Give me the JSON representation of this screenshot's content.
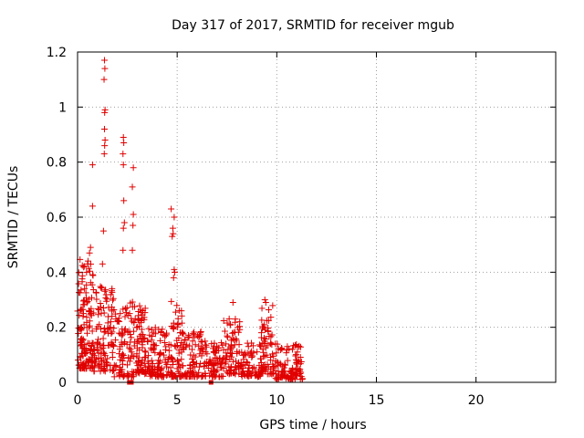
{
  "chart_data": {
    "type": "scatter",
    "title": "Day 317 of 2017, SRMTID for receiver mgub",
    "xlabel": "GPS time / hours",
    "ylabel": "SRMTID / TECUs",
    "xlim": [
      0,
      24
    ],
    "ylim": [
      0,
      1.2
    ],
    "xticks": [
      0,
      5,
      10,
      15,
      20
    ],
    "xtick_labels": [
      "0",
      "5",
      "10",
      "15",
      "20"
    ],
    "yticks": [
      0,
      0.2,
      0.4,
      0.6,
      0.8,
      1.0,
      1.2
    ],
    "ytick_labels": [
      "0",
      "0.2",
      "0.4",
      "0.6",
      "0.8",
      "1",
      "1.2"
    ],
    "grid": true,
    "marker": "+",
    "color": "#e00000",
    "notable_points": [
      {
        "x": 1.35,
        "y": 1.17
      },
      {
        "x": 1.37,
        "y": 1.14
      },
      {
        "x": 1.33,
        "y": 1.1
      },
      {
        "x": 1.38,
        "y": 0.99
      },
      {
        "x": 1.36,
        "y": 0.98
      },
      {
        "x": 1.35,
        "y": 0.92
      },
      {
        "x": 1.38,
        "y": 0.88
      },
      {
        "x": 1.36,
        "y": 0.86
      },
      {
        "x": 1.34,
        "y": 0.83
      },
      {
        "x": 0.75,
        "y": 0.79
      },
      {
        "x": 0.75,
        "y": 0.64
      },
      {
        "x": 2.3,
        "y": 0.89
      },
      {
        "x": 2.32,
        "y": 0.87
      },
      {
        "x": 2.28,
        "y": 0.83
      },
      {
        "x": 2.3,
        "y": 0.79
      },
      {
        "x": 2.32,
        "y": 0.66
      },
      {
        "x": 2.35,
        "y": 0.58
      },
      {
        "x": 2.3,
        "y": 0.56
      },
      {
        "x": 2.28,
        "y": 0.48
      },
      {
        "x": 2.8,
        "y": 0.78
      },
      {
        "x": 2.75,
        "y": 0.71
      },
      {
        "x": 2.8,
        "y": 0.61
      },
      {
        "x": 2.78,
        "y": 0.57
      },
      {
        "x": 2.75,
        "y": 0.48
      },
      {
        "x": 4.7,
        "y": 0.63
      },
      {
        "x": 4.85,
        "y": 0.6
      },
      {
        "x": 4.78,
        "y": 0.56
      },
      {
        "x": 4.8,
        "y": 0.54
      },
      {
        "x": 4.75,
        "y": 0.53
      },
      {
        "x": 4.85,
        "y": 0.41
      },
      {
        "x": 4.88,
        "y": 0.4
      },
      {
        "x": 4.82,
        "y": 0.38
      },
      {
        "x": 1.3,
        "y": 0.55
      },
      {
        "x": 1.25,
        "y": 0.43
      },
      {
        "x": 0.5,
        "y": 0.43
      },
      {
        "x": 0.45,
        "y": 0.4
      },
      {
        "x": 0.35,
        "y": 0.34
      },
      {
        "x": 0.65,
        "y": 0.49
      },
      {
        "x": 0.6,
        "y": 0.47
      },
      {
        "x": 7.8,
        "y": 0.29
      },
      {
        "x": 9.4,
        "y": 0.3
      },
      {
        "x": 9.45,
        "y": 0.29
      }
    ],
    "clusters": [
      {
        "x": [
          0.0,
          0.8
        ],
        "y": [
          0.05,
          0.45
        ],
        "count": 140
      },
      {
        "x": [
          0.8,
          1.8
        ],
        "y": [
          0.04,
          0.35
        ],
        "count": 110
      },
      {
        "x": [
          1.8,
          3.0
        ],
        "y": [
          0.02,
          0.3
        ],
        "count": 110
      },
      {
        "x": [
          3.0,
          3.6
        ],
        "y": [
          0.03,
          0.28
        ],
        "count": 70
      },
      {
        "x": [
          3.6,
          4.6
        ],
        "y": [
          0.02,
          0.2
        ],
        "count": 90
      },
      {
        "x": [
          4.6,
          5.3
        ],
        "y": [
          0.02,
          0.3
        ],
        "count": 70
      },
      {
        "x": [
          5.3,
          6.3
        ],
        "y": [
          0.02,
          0.19
        ],
        "count": 80
      },
      {
        "x": [
          6.3,
          7.3
        ],
        "y": [
          0.02,
          0.15
        ],
        "count": 75
      },
      {
        "x": [
          7.3,
          8.2
        ],
        "y": [
          0.03,
          0.24
        ],
        "count": 80
      },
      {
        "x": [
          8.2,
          9.2
        ],
        "y": [
          0.02,
          0.15
        ],
        "count": 70
      },
      {
        "x": [
          9.2,
          9.9
        ],
        "y": [
          0.03,
          0.28
        ],
        "count": 70
      },
      {
        "x": [
          9.9,
          11.3
        ],
        "y": [
          0.01,
          0.14
        ],
        "count": 110
      }
    ],
    "zero_points": [
      {
        "x": 2.6,
        "y": 0.0
      },
      {
        "x": 2.7,
        "y": 0.0
      },
      {
        "x": 6.7,
        "y": 0.0
      }
    ]
  }
}
